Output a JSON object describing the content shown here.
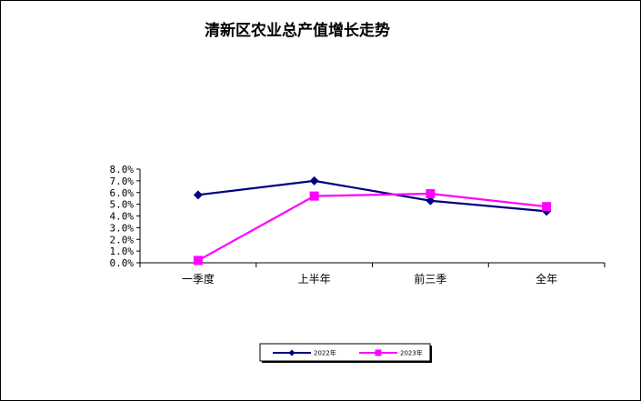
{
  "chart_data": {
    "type": "line",
    "title": "清新区农业总产值增长走势",
    "categories": [
      "一季度",
      "上半年",
      "前三季",
      "全年"
    ],
    "ylim": [
      0,
      8
    ],
    "yticks": [
      "0.0%",
      "1.0%",
      "2.0%",
      "3.0%",
      "4.0%",
      "5.0%",
      "6.0%",
      "7.0%",
      "8.0%"
    ],
    "grid": false,
    "legend_position": "bottom",
    "series": [
      {
        "name": "2022年",
        "values": [
          5.8,
          7.0,
          5.3,
          4.4
        ],
        "color": "#000080",
        "marker": "diamond"
      },
      {
        "name": "2023年",
        "values": [
          0.2,
          5.7,
          5.9,
          4.8
        ],
        "color": "#FF00FF",
        "marker": "square"
      }
    ]
  }
}
